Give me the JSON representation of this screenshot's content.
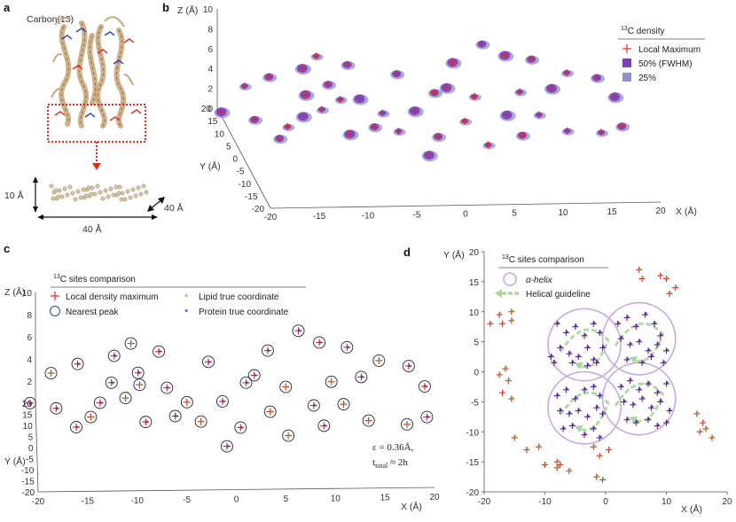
{
  "colors": {
    "local_max": "#e8241c",
    "density50": "#7b3fbf",
    "density25": "#8f90cc",
    "lipid": "#4ec94e",
    "protein": "#2424d8",
    "peak_circle": "#1f2a3a",
    "helix": "#c7a9e3",
    "guideline": "#a9d69a",
    "protein_struct": "#c9a97c",
    "dashed_box": "#e02a1a"
  },
  "chart_data": [
    {
      "panel": "a",
      "type": "other",
      "title": "Carbon(13)",
      "dim_height": "10 Å",
      "dim_depth": "40 Å",
      "dim_width": "40 Å"
    },
    {
      "panel": "b",
      "type": "scatter",
      "xlabel": "X (Å)",
      "ylabel": "Y (Å)",
      "zlabel": "Z (Å)",
      "x_ticks": [
        "-20",
        "-15",
        "-10",
        "-5",
        "0",
        "5",
        "10",
        "15",
        "20"
      ],
      "y_ticks": [
        "-20",
        "-15",
        "-10",
        "-5",
        "0",
        "5",
        "10",
        "15",
        "20"
      ],
      "z_ticks": [
        "0",
        "2",
        "4",
        "6",
        "8",
        "10"
      ],
      "legend_title_sup": "13",
      "legend_title": "C density",
      "legend": [
        "Local Maximum",
        "50% (FWHM)",
        "25%"
      ],
      "points": [
        [
          -18.5,
          10.5,
          4.6
        ],
        [
          -15.8,
          12.0,
          5.1
        ],
        [
          -12.1,
          14.0,
          5.4
        ],
        [
          -10.4,
          16.0,
          6.1
        ],
        [
          -9.7,
          12.2,
          4.2
        ],
        [
          -12.4,
          9.4,
          3.9
        ],
        [
          -11.0,
          7.4,
          2.9
        ],
        [
          -18.0,
          6.6,
          2.2
        ],
        [
          -13.6,
          2.4,
          3.5
        ],
        [
          -9.6,
          3.8,
          4.8
        ],
        [
          -7.6,
          13.2,
          5.9
        ],
        [
          -6.8,
          9.8,
          3.3
        ],
        [
          -4.8,
          7.2,
          2.5
        ],
        [
          -2.6,
          12.8,
          5.0
        ],
        [
          -1.2,
          9.4,
          2.1
        ],
        [
          -3.4,
          5.4,
          1.1
        ],
        [
          1.2,
          12.2,
          3.2
        ],
        [
          3.4,
          14.6,
          5.6
        ],
        [
          5.2,
          11.6,
          2.9
        ],
        [
          6.5,
          15.4,
          7.2
        ],
        [
          8.6,
          13.5,
          6.5
        ],
        [
          9.8,
          11.2,
          3.4
        ],
        [
          11.4,
          14.2,
          5.9
        ],
        [
          8.0,
          7.6,
          2.0
        ],
        [
          3.6,
          7.0,
          1.6
        ],
        [
          0.6,
          5.0,
          0.6
        ],
        [
          -0.8,
          1.6,
          -0.4
        ],
        [
          5.4,
          2.6,
          0.3
        ],
        [
          9.0,
          3.4,
          1.0
        ],
        [
          12.8,
          9.2,
          4.2
        ],
        [
          14.6,
          11.0,
          5.3
        ],
        [
          17.6,
          10.4,
          4.9
        ],
        [
          19.2,
          8.6,
          3.4
        ],
        [
          17.4,
          5.6,
          0.6
        ],
        [
          19.4,
          4.8,
          1.4
        ],
        [
          -20.6,
          12.6,
          1.5
        ],
        [
          -14.5,
          7.5,
          1.2
        ],
        [
          -6.0,
          4.5,
          1.8
        ],
        [
          2.0,
          9.0,
          4.5
        ],
        [
          11.0,
          5.5,
          2.5
        ],
        [
          -16.0,
          2.5,
          1.3
        ],
        [
          -9.0,
          1.0,
          2.0
        ],
        [
          13.5,
          2.5,
          1.6
        ]
      ]
    },
    {
      "panel": "c",
      "type": "scatter",
      "xlabel": "X (Å)",
      "ylabel": "Y (Å)",
      "zlabel": "Z (Å)",
      "x_ticks": [
        "-20",
        "-15",
        "-10",
        "-5",
        "0",
        "5",
        "10",
        "15",
        "20"
      ],
      "y_ticks": [
        "-20",
        "-15",
        "-10",
        "-5",
        "0",
        "5",
        "10",
        "15",
        "20"
      ],
      "z_ticks": [
        "0",
        "2",
        "4",
        "6",
        "8",
        "10"
      ],
      "legend_title_sup": "13",
      "legend_title": "C sites comparison",
      "legend": [
        "Local density maximum",
        "Nearest peak",
        "Lipid true coordinate",
        "Protein true coordinate"
      ],
      "annotation_eps": "ε = 0.36Å,",
      "annotation_t_main": "t",
      "annotation_t_sub": "total",
      "annotation_t_rest": " ≈ 2h",
      "points": [
        [
          -18.5,
          10.5,
          4.6
        ],
        [
          -15.8,
          12.0,
          5.1
        ],
        [
          -12.1,
          14.0,
          5.4
        ],
        [
          -10.4,
          16.0,
          6.1
        ],
        [
          -9.7,
          12.2,
          4.2
        ],
        [
          -12.4,
          9.4,
          3.9
        ],
        [
          -11.0,
          7.4,
          2.9
        ],
        [
          -18.0,
          6.6,
          2.2
        ],
        [
          -13.6,
          2.4,
          3.5
        ],
        [
          -9.6,
          3.8,
          4.8
        ],
        [
          -7.6,
          13.2,
          5.9
        ],
        [
          -6.8,
          9.8,
          3.3
        ],
        [
          -4.8,
          7.2,
          2.5
        ],
        [
          -2.6,
          12.8,
          5.0
        ],
        [
          -1.2,
          9.4,
          2.1
        ],
        [
          -3.4,
          5.4,
          1.1
        ],
        [
          1.2,
          12.2,
          3.2
        ],
        [
          3.4,
          14.6,
          5.6
        ],
        [
          5.2,
          11.6,
          2.9
        ],
        [
          6.5,
          15.4,
          7.2
        ],
        [
          8.6,
          13.5,
          6.5
        ],
        [
          9.8,
          11.2,
          3.4
        ],
        [
          11.4,
          14.2,
          5.9
        ],
        [
          8.0,
          7.6,
          2.0
        ],
        [
          3.6,
          7.0,
          1.6
        ],
        [
          0.6,
          5.0,
          0.6
        ],
        [
          -0.8,
          1.6,
          -0.4
        ],
        [
          5.4,
          2.6,
          0.3
        ],
        [
          9.0,
          3.4,
          1.0
        ],
        [
          12.8,
          9.2,
          4.2
        ],
        [
          14.6,
          11.0,
          5.3
        ],
        [
          17.6,
          10.4,
          4.9
        ],
        [
          19.2,
          8.6,
          3.4
        ],
        [
          17.4,
          5.6,
          0.6
        ],
        [
          19.4,
          4.8,
          1.4
        ],
        [
          -20.6,
          12.6,
          1.5
        ],
        [
          -14.5,
          7.5,
          1.2
        ],
        [
          -6.0,
          4.5,
          1.8
        ],
        [
          2.0,
          9.0,
          4.5
        ],
        [
          11.0,
          5.5,
          2.5
        ],
        [
          -16.0,
          2.5,
          1.3
        ],
        [
          -9.0,
          1.0,
          2.0
        ],
        [
          13.5,
          2.5,
          1.6
        ]
      ]
    },
    {
      "panel": "d",
      "type": "scatter",
      "xlabel": "X (Å)",
      "ylabel": "Y (Å)",
      "xlim": [
        -20,
        20
      ],
      "ylim": [
        -20,
        20
      ],
      "x_ticks": [
        -20,
        -10,
        0,
        10,
        20
      ],
      "y_ticks": [
        -20,
        -15,
        -10,
        -5,
        0,
        5,
        10,
        15,
        20
      ],
      "legend_title_sup": "13",
      "legend_title": "C sites comparison",
      "legend": [
        "α-helix",
        "Helical guideline"
      ],
      "helices": [
        {
          "cx": -3.5,
          "cy": 4.5,
          "r": 6.0
        },
        {
          "cx": 5.5,
          "cy": 5.5,
          "r": 6.0
        },
        {
          "cx": -3.5,
          "cy": -6.0,
          "r": 6.0
        },
        {
          "cx": 5.5,
          "cy": -4.5,
          "r": 6.0
        }
      ],
      "points": [
        [
          -17.5,
          9.5
        ],
        [
          -15.5,
          10.0
        ],
        [
          -19.0,
          8.0
        ],
        [
          -17.0,
          8.0
        ],
        [
          -15.5,
          8.5
        ],
        [
          -16.5,
          0.5
        ],
        [
          -17.5,
          -0.5
        ],
        [
          -16.0,
          -1.5
        ],
        [
          -15.5,
          -4.5
        ],
        [
          -17.0,
          -3.5
        ],
        [
          -15.0,
          -11.0
        ],
        [
          -13.0,
          -13.0
        ],
        [
          -11.0,
          -12.5
        ],
        [
          -10.0,
          -15.5
        ],
        [
          -8.0,
          -15.0
        ],
        [
          -8.0,
          -16.0
        ],
        [
          -6.0,
          -16.5
        ],
        [
          -7.5,
          -15.5
        ],
        [
          -2.0,
          -12.5
        ],
        [
          -1.0,
          -14.0
        ],
        [
          0.5,
          -13.0
        ],
        [
          -1.5,
          -17.5
        ],
        [
          -0.5,
          -18.0
        ],
        [
          5.5,
          17.0
        ],
        [
          6.0,
          15.5
        ],
        [
          9.0,
          16.0
        ],
        [
          10.5,
          13.0
        ],
        [
          10.0,
          15.5
        ],
        [
          11.5,
          14.0
        ],
        [
          15.0,
          -7.0
        ],
        [
          16.0,
          -8.5
        ],
        [
          15.5,
          -10.0
        ],
        [
          16.5,
          -9.5
        ],
        [
          17.5,
          -11.0
        ],
        [
          -8.0,
          8.0
        ],
        [
          -6.5,
          6.5
        ],
        [
          -5.0,
          7.5
        ],
        [
          -3.5,
          6.0
        ],
        [
          -2.0,
          8.0
        ],
        [
          -1.0,
          6.5
        ],
        [
          -7.5,
          4.0
        ],
        [
          -6.0,
          3.0
        ],
        [
          -4.5,
          2.5
        ],
        [
          -3.0,
          4.0
        ],
        [
          -2.0,
          2.0
        ],
        [
          -0.5,
          4.0
        ],
        [
          -9.0,
          2.5
        ],
        [
          -8.5,
          1.5
        ],
        [
          -5.5,
          1.5
        ],
        [
          -3.0,
          1.0
        ],
        [
          -1.5,
          1.5
        ],
        [
          2.0,
          8.0
        ],
        [
          3.5,
          9.0
        ],
        [
          5.0,
          7.5
        ],
        [
          6.5,
          9.5
        ],
        [
          8.0,
          8.0
        ],
        [
          9.0,
          6.0
        ],
        [
          2.5,
          5.5
        ],
        [
          4.0,
          4.5
        ],
        [
          5.5,
          5.0
        ],
        [
          7.0,
          3.5
        ],
        [
          8.5,
          4.5
        ],
        [
          10.0,
          3.5
        ],
        [
          3.5,
          2.0
        ],
        [
          6.0,
          1.5
        ],
        [
          7.5,
          2.5
        ],
        [
          9.5,
          1.5
        ],
        [
          -8.0,
          -4.0
        ],
        [
          -6.5,
          -3.0
        ],
        [
          -5.0,
          -4.5
        ],
        [
          -3.5,
          -3.0
        ],
        [
          -2.0,
          -2.5
        ],
        [
          -1.0,
          -4.0
        ],
        [
          -7.5,
          -6.5
        ],
        [
          -6.0,
          -7.0
        ],
        [
          -4.5,
          -6.5
        ],
        [
          -3.0,
          -7.5
        ],
        [
          -1.5,
          -6.0
        ],
        [
          -0.5,
          -7.0
        ],
        [
          -7.0,
          -9.5
        ],
        [
          -5.5,
          -9.0
        ],
        [
          -3.5,
          -10.5
        ],
        [
          -2.0,
          -9.5
        ],
        [
          -1.0,
          -11.0
        ],
        [
          2.5,
          -2.5
        ],
        [
          4.0,
          -1.5
        ],
        [
          5.5,
          -3.0
        ],
        [
          7.0,
          -2.0
        ],
        [
          8.5,
          -3.5
        ],
        [
          10.0,
          -2.0
        ],
        [
          3.0,
          -5.0
        ],
        [
          4.5,
          -5.5
        ],
        [
          6.0,
          -4.5
        ],
        [
          7.5,
          -6.0
        ],
        [
          9.0,
          -5.0
        ],
        [
          10.5,
          -6.5
        ],
        [
          3.5,
          -8.0
        ],
        [
          5.0,
          -8.5
        ],
        [
          7.0,
          -8.0
        ],
        [
          8.5,
          -9.0
        ],
        [
          10.0,
          -8.5
        ]
      ]
    }
  ]
}
